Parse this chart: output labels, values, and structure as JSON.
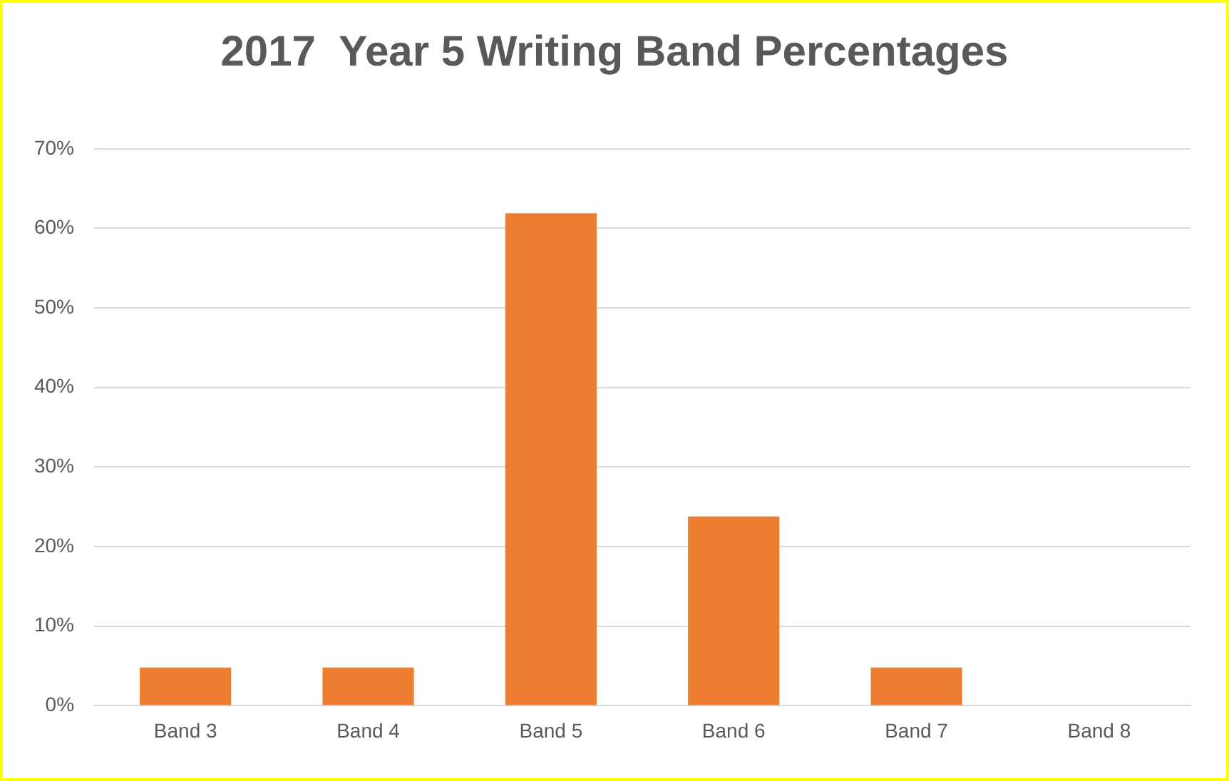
{
  "chart_data": {
    "type": "bar",
    "title": "2017  Year 5 Writing Band Percentages",
    "categories": [
      "Band 3",
      "Band 4",
      "Band 5",
      "Band 6",
      "Band 7",
      "Band 8"
    ],
    "values": [
      4.8,
      4.8,
      61.9,
      23.8,
      4.8,
      0
    ],
    "color": "#ed7d31",
    "ylim": [
      0,
      70
    ],
    "yticks": [
      {
        "value": 0,
        "label": "0%"
      },
      {
        "value": 10,
        "label": "10%"
      },
      {
        "value": 20,
        "label": "20%"
      },
      {
        "value": 30,
        "label": "30%"
      },
      {
        "value": 40,
        "label": "40%"
      },
      {
        "value": 50,
        "label": "50%"
      },
      {
        "value": 60,
        "label": "60%"
      },
      {
        "value": 70,
        "label": "70%"
      }
    ],
    "grid": "y",
    "legend": false
  }
}
